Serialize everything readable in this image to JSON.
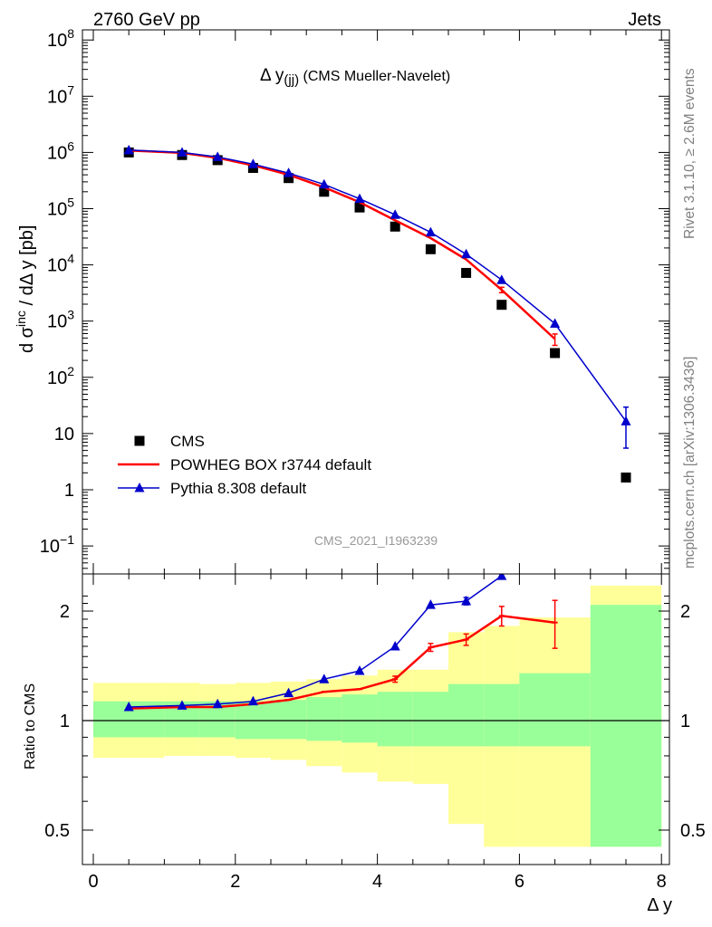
{
  "header": {
    "left": "2760 GeV pp",
    "right": "Jets"
  },
  "side_text": {
    "top": "Rivet 3.1.10, ≥ 2.6M events",
    "bottom": "mcplots.cern.ch [arXiv:1306.3436]"
  },
  "colors": {
    "data": "#000000",
    "powheg": "#ff0000",
    "pythia": "#0000cc",
    "band_inner": "#99ff99",
    "band_outer": "#ffff99"
  },
  "chart_data": [
    {
      "type": "line",
      "panel": "main",
      "title": "Δ y",
      "title_sub": "(jj)",
      "title_suffix": " (CMS Mueller-Navelet)",
      "ylabel": "d σinc / dΔ y [pb]",
      "yscale": "log",
      "ylim": [
        0.03,
        200000000
      ],
      "xlim": [
        -0.2,
        8.3
      ],
      "yticks": [
        {
          "v": 0.1,
          "label": "10",
          "exp": "−1"
        },
        {
          "v": 1,
          "label": "1"
        },
        {
          "v": 10,
          "label": "10"
        },
        {
          "v": 100,
          "label": "10",
          "exp": "2"
        },
        {
          "v": 1000,
          "label": "10",
          "exp": "3"
        },
        {
          "v": 10000,
          "label": "10",
          "exp": "4"
        },
        {
          "v": 100000,
          "label": "10",
          "exp": "5"
        },
        {
          "v": 1000000,
          "label": "10",
          "exp": "6"
        },
        {
          "v": 10000000,
          "label": "10",
          "exp": "7"
        },
        {
          "v": 100000000,
          "label": "10",
          "exp": "8"
        }
      ],
      "watermark": "CMS_2021_I1963239",
      "series": [
        {
          "name": "CMS",
          "style": "data",
          "x": [
            0.5,
            1.25,
            1.75,
            2.25,
            2.75,
            3.25,
            3.75,
            4.25,
            4.75,
            5.25,
            5.75,
            6.5,
            7.5
          ],
          "y": [
            1000000,
            900000,
            730000,
            530000,
            350000,
            200000,
            105000,
            48000,
            19000,
            7200,
            1950,
            270,
            1.65
          ]
        },
        {
          "name": "POWHEG BOX r3744 default",
          "style": "powheg",
          "x": [
            0.5,
            1.25,
            1.75,
            2.25,
            2.75,
            3.25,
            3.75,
            4.25,
            4.75,
            5.25,
            5.75,
            6.5
          ],
          "y": [
            1080000,
            980000,
            800000,
            590000,
            400000,
            240000,
            130000,
            62000,
            30000,
            12500,
            3600,
            480
          ],
          "err_lo": [
            0,
            0,
            0,
            0,
            0,
            0,
            0,
            0,
            0,
            0,
            400,
            110
          ],
          "err_hi": [
            0,
            0,
            0,
            0,
            0,
            0,
            0,
            0,
            0,
            0,
            400,
            110
          ]
        },
        {
          "name": "Pythia 8.308 default",
          "style": "pythia",
          "x": [
            0.5,
            1.25,
            1.75,
            2.25,
            2.75,
            3.25,
            3.75,
            4.25,
            4.75,
            5.25,
            5.75,
            6.5,
            7.5
          ],
          "y": [
            1100000,
            1000000,
            830000,
            620000,
            430000,
            270000,
            150000,
            78000,
            38000,
            15500,
            5400,
            900,
            16.5
          ],
          "err_lo": [
            0,
            0,
            0,
            0,
            0,
            0,
            0,
            0,
            0,
            0,
            0,
            0,
            11
          ],
          "err_hi": [
            0,
            0,
            0,
            0,
            0,
            0,
            0,
            0,
            0,
            0,
            0,
            0,
            13
          ]
        }
      ]
    },
    {
      "type": "line",
      "panel": "ratio",
      "ylabel": "Ratio to CMS",
      "xlabel": "Δ y",
      "yscale": "log",
      "ylim": [
        0.42,
        2.35
      ],
      "xlim": [
        -0.2,
        8.3
      ],
      "xticks": [
        0,
        2,
        4,
        6,
        8
      ],
      "yticks": [
        {
          "v": 0.5,
          "label": "0.5"
        },
        {
          "v": 1,
          "label": "1"
        },
        {
          "v": 2,
          "label": "2"
        }
      ],
      "bands": {
        "edges": [
          0,
          1,
          1.5,
          2,
          2.5,
          3,
          3.5,
          4,
          4.5,
          5,
          5.5,
          6,
          7,
          8
        ],
        "inner_lo": [
          0.9,
          0.9,
          0.9,
          0.89,
          0.89,
          0.88,
          0.87,
          0.85,
          0.85,
          0.85,
          0.85,
          0.85,
          0.45,
          0.45
        ],
        "inner_hi": [
          1.13,
          1.13,
          1.13,
          1.13,
          1.14,
          1.16,
          1.18,
          1.2,
          1.2,
          1.26,
          1.26,
          1.35,
          2.08,
          2.08
        ],
        "outer_lo": [
          0.79,
          0.8,
          0.8,
          0.79,
          0.78,
          0.75,
          0.72,
          0.68,
          0.67,
          0.52,
          0.45,
          0.45,
          0.45,
          0.45
        ],
        "outer_hi": [
          1.27,
          1.27,
          1.26,
          1.27,
          1.28,
          1.3,
          1.33,
          1.38,
          1.38,
          1.75,
          1.82,
          1.92,
          2.35,
          2.35
        ]
      },
      "series": [
        {
          "name": "POWHEG BOX r3744 default",
          "style": "powheg",
          "x": [
            0.5,
            1.25,
            1.75,
            2.25,
            2.75,
            3.25,
            3.75,
            4.25,
            4.75,
            5.25,
            5.75,
            6.5
          ],
          "y": [
            1.08,
            1.09,
            1.09,
            1.11,
            1.14,
            1.2,
            1.22,
            1.3,
            1.59,
            1.67,
            1.94,
            1.86
          ],
          "err_lo": [
            0,
            0,
            0,
            0,
            0,
            0,
            0,
            0.025,
            0.04,
            0.06,
            0.12,
            0.28
          ],
          "err_hi": [
            0,
            0,
            0,
            0,
            0,
            0,
            0,
            0.025,
            0.04,
            0.06,
            0.12,
            0.28
          ]
        },
        {
          "name": "Pythia 8.308 default",
          "style": "pythia",
          "x": [
            0.5,
            1.25,
            1.75,
            2.25,
            2.75,
            3.25,
            3.75,
            4.25,
            4.75,
            5.25,
            5.75
          ],
          "y": [
            1.09,
            1.1,
            1.11,
            1.13,
            1.19,
            1.3,
            1.37,
            1.6,
            2.08,
            2.13,
            2.5
          ],
          "err_lo": [
            0,
            0,
            0,
            0,
            0,
            0,
            0,
            0,
            0,
            0.05,
            0
          ],
          "err_hi": [
            0,
            0,
            0,
            0,
            0,
            0,
            0,
            0,
            0,
            0.05,
            0
          ]
        }
      ]
    }
  ]
}
